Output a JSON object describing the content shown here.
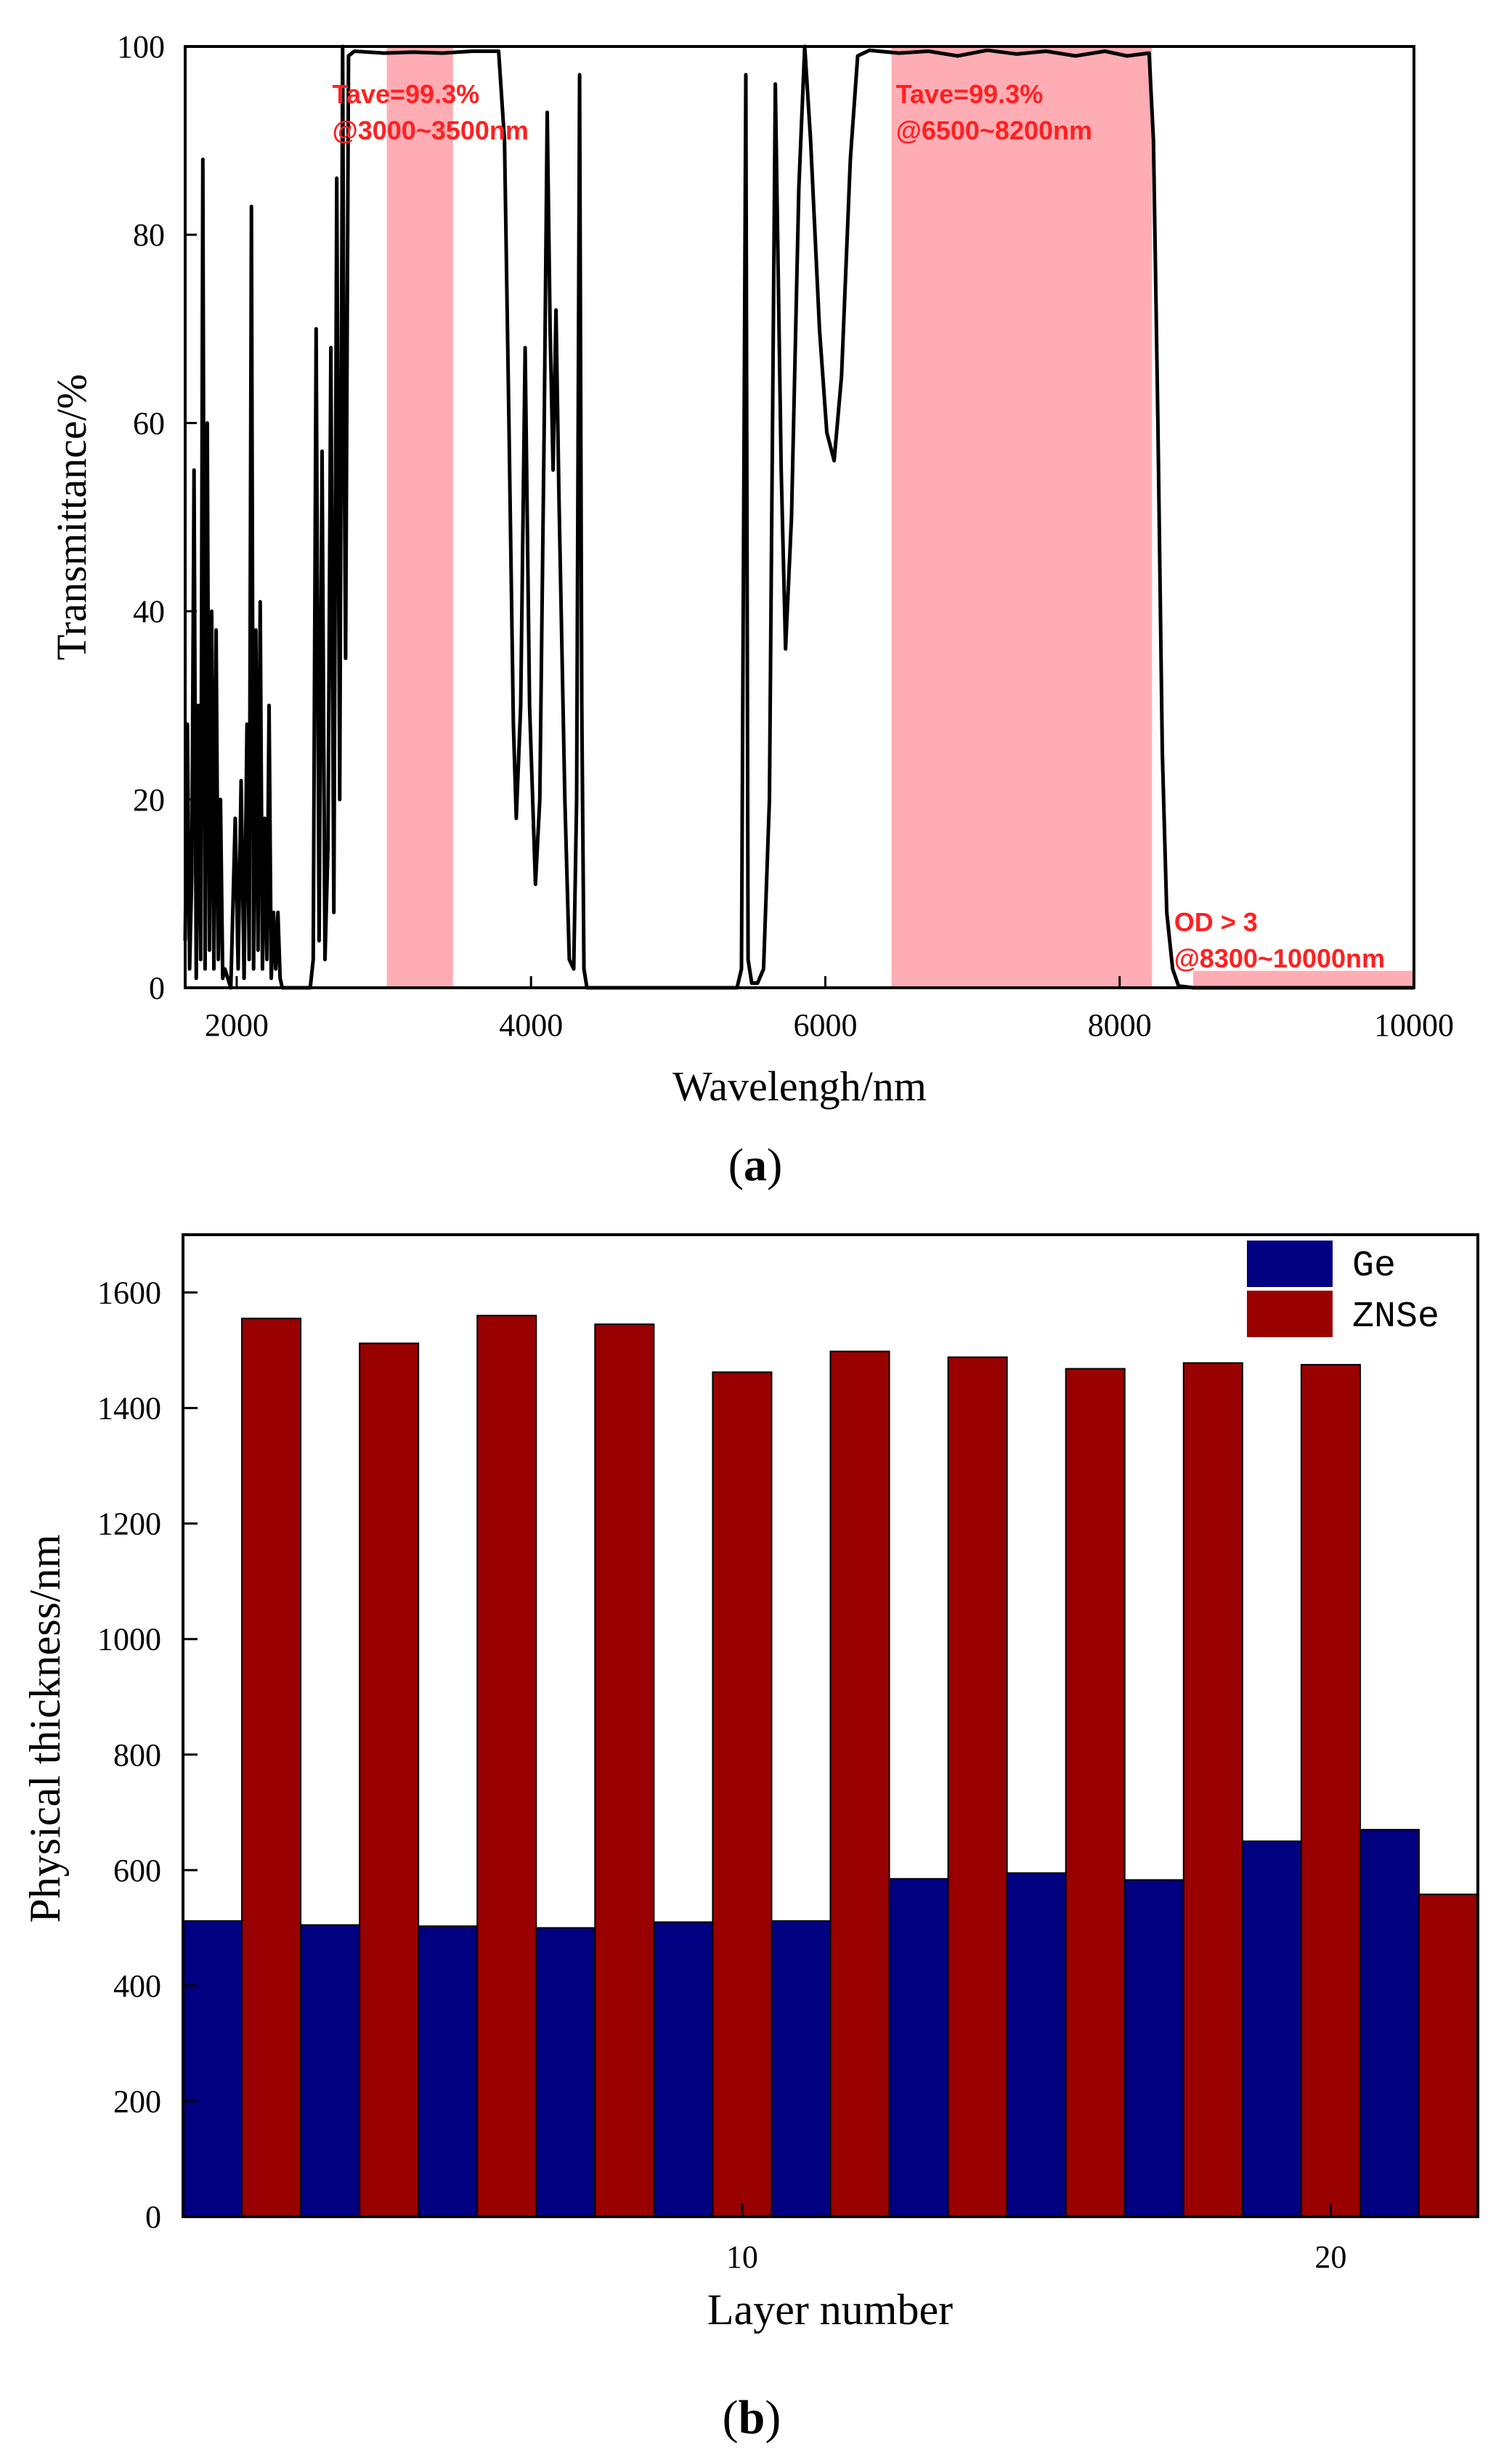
{
  "chart_data": [
    {
      "type": "line",
      "panel_label": "a",
      "xlabel": "Wavelengh/nm",
      "ylabel": "Transmittance/%",
      "xlim": [
        1650,
        10000
      ],
      "ylim": [
        0,
        100
      ],
      "xticks": [
        2000,
        4000,
        6000,
        8000,
        10000
      ],
      "yticks": [
        0,
        20,
        40,
        60,
        80,
        100
      ],
      "shaded_bands": [
        {
          "x0": 3020,
          "x1": 3470,
          "y0": 0,
          "y1": 100
        },
        {
          "x0": 6450,
          "x1": 8220,
          "y0": 0,
          "y1": 100
        },
        {
          "x0": 8500,
          "x1": 10000,
          "y0": 0,
          "y1": 1.8
        }
      ],
      "annotations": [
        {
          "lines": [
            "Tave=99.3%",
            "@3000~3500nm"
          ],
          "x": 2650,
          "y": 94
        },
        {
          "lines": [
            "Tave=99.3%",
            "@6500~8200nm"
          ],
          "x": 6480,
          "y": 94
        },
        {
          "lines": [
            "OD > 3",
            "@8300~10000nm"
          ],
          "x": 8370,
          "y": 6
        }
      ],
      "series": [
        {
          "name": "Transmittance",
          "points": [
            [
              1650,
              5
            ],
            [
              1665,
              28
            ],
            [
              1680,
              2
            ],
            [
              1695,
              12
            ],
            [
              1710,
              55
            ],
            [
              1725,
              1
            ],
            [
              1740,
              30
            ],
            [
              1755,
              3
            ],
            [
              1770,
              88
            ],
            [
              1785,
              2
            ],
            [
              1800,
              60
            ],
            [
              1815,
              4
            ],
            [
              1830,
              40
            ],
            [
              1845,
              2
            ],
            [
              1860,
              38
            ],
            [
              1875,
              3
            ],
            [
              1890,
              20
            ],
            [
              1905,
              1
            ],
            [
              1920,
              2
            ],
            [
              1960,
              0
            ],
            [
              1990,
              18
            ],
            [
              2010,
              2
            ],
            [
              2030,
              22
            ],
            [
              2050,
              1
            ],
            [
              2070,
              28
            ],
            [
              2085,
              3
            ],
            [
              2100,
              83
            ],
            [
              2115,
              2
            ],
            [
              2130,
              38
            ],
            [
              2145,
              4
            ],
            [
              2160,
              41
            ],
            [
              2175,
              2
            ],
            [
              2190,
              18
            ],
            [
              2205,
              3
            ],
            [
              2220,
              30
            ],
            [
              2235,
              1
            ],
            [
              2250,
              8
            ],
            [
              2265,
              2
            ],
            [
              2280,
              8
            ],
            [
              2295,
              1
            ],
            [
              2310,
              0
            ],
            [
              2400,
              0
            ],
            [
              2500,
              0
            ],
            [
              2520,
              3
            ],
            [
              2540,
              70
            ],
            [
              2560,
              5
            ],
            [
              2580,
              57
            ],
            [
              2600,
              3
            ],
            [
              2620,
              15
            ],
            [
              2640,
              68
            ],
            [
              2660,
              8
            ],
            [
              2680,
              86
            ],
            [
              2700,
              20
            ],
            [
              2720,
              100
            ],
            [
              2730,
              60
            ],
            [
              2740,
              35
            ],
            [
              2760,
              99
            ],
            [
              2800,
              99.5
            ],
            [
              3000,
              99.3
            ],
            [
              3200,
              99.4
            ],
            [
              3400,
              99.3
            ],
            [
              3600,
              99.5
            ],
            [
              3780,
              99.5
            ],
            [
              3820,
              90
            ],
            [
              3850,
              60
            ],
            [
              3880,
              28
            ],
            [
              3900,
              18
            ],
            [
              3930,
              30
            ],
            [
              3960,
              68
            ],
            [
              3990,
              30
            ],
            [
              4030,
              11
            ],
            [
              4060,
              20
            ],
            [
              4090,
              60
            ],
            [
              4110,
              93
            ],
            [
              4130,
              70
            ],
            [
              4150,
              55
            ],
            [
              4170,
              72
            ],
            [
              4190,
              52
            ],
            [
              4230,
              20
            ],
            [
              4260,
              3
            ],
            [
              4290,
              2
            ],
            [
              4310,
              20
            ],
            [
              4330,
              97
            ],
            [
              4345,
              30
            ],
            [
              4360,
              2
            ],
            [
              4380,
              0
            ],
            [
              4500,
              0
            ],
            [
              5000,
              0
            ],
            [
              5300,
              0
            ],
            [
              5400,
              0
            ],
            [
              5430,
              2
            ],
            [
              5460,
              97
            ],
            [
              5475,
              3
            ],
            [
              5500,
              0.5
            ],
            [
              5540,
              0.5
            ],
            [
              5580,
              2
            ],
            [
              5620,
              20
            ],
            [
              5660,
              96
            ],
            [
              5700,
              55
            ],
            [
              5730,
              36
            ],
            [
              5770,
              50
            ],
            [
              5820,
              85
            ],
            [
              5860,
              100
            ],
            [
              5900,
              90
            ],
            [
              5960,
              70
            ],
            [
              6010,
              59
            ],
            [
              6060,
              56
            ],
            [
              6110,
              65
            ],
            [
              6170,
              88
            ],
            [
              6220,
              99
            ],
            [
              6300,
              99.6
            ],
            [
              6500,
              99.3
            ],
            [
              6700,
              99.5
            ],
            [
              6900,
              99
            ],
            [
              7100,
              99.6
            ],
            [
              7300,
              99.2
            ],
            [
              7500,
              99.5
            ],
            [
              7700,
              99
            ],
            [
              7900,
              99.5
            ],
            [
              8050,
              99
            ],
            [
              8200,
              99.3
            ],
            [
              8230,
              90
            ],
            [
              8260,
              60
            ],
            [
              8290,
              25
            ],
            [
              8320,
              8
            ],
            [
              8360,
              2
            ],
            [
              8400,
              0.2
            ],
            [
              8500,
              0
            ],
            [
              9000,
              0
            ],
            [
              10000,
              0
            ]
          ]
        }
      ]
    },
    {
      "type": "bar",
      "panel_label": "b",
      "xlabel": "Layer number",
      "ylabel": "Physical thickness/nm",
      "xlim": [
        0.5,
        22.5
      ],
      "ylim": [
        0,
        1700
      ],
      "xticks": [
        10,
        20
      ],
      "yticks": [
        0,
        200,
        400,
        600,
        800,
        1000,
        1200,
        1400,
        1600
      ],
      "categories": [
        1,
        2,
        3,
        4,
        5,
        6,
        7,
        8,
        9,
        10,
        11,
        12,
        13,
        14,
        15,
        16,
        17,
        18,
        19,
        20,
        21,
        22
      ],
      "series": [
        {
          "name": "Ge",
          "color": "#000080",
          "x": [
            1,
            3,
            5,
            7,
            9,
            11,
            13,
            15,
            17,
            19,
            21
          ],
          "values": [
            512,
            505,
            503,
            500,
            510,
            512,
            585,
            595,
            583,
            650,
            670
          ]
        },
        {
          "name": "ZNSe",
          "color": "#990000",
          "x": [
            2,
            4,
            6,
            8,
            10,
            12,
            14,
            16,
            18,
            20,
            22
          ],
          "values": [
            1555,
            1512,
            1560,
            1545,
            1462,
            1498,
            1488,
            1468,
            1478,
            1475,
            558
          ]
        }
      ]
    }
  ]
}
